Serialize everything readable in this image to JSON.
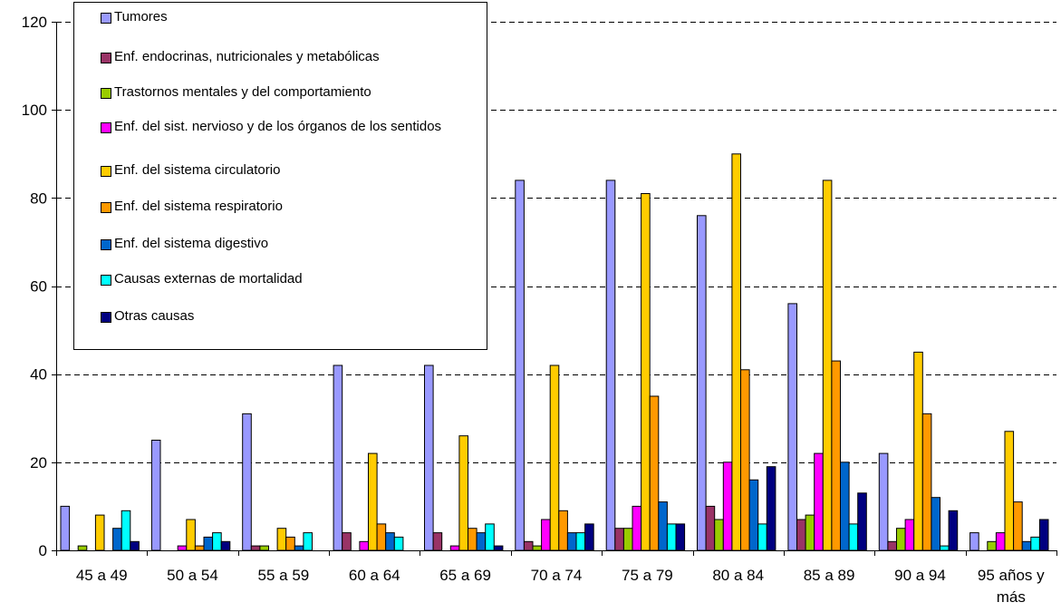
{
  "chart_data": {
    "type": "bar",
    "categories": [
      "45 a 49",
      "50 a 54",
      "55 a 59",
      "60 a 64",
      "65 a 69",
      "70 a 74",
      "75 a 79",
      "80 a 84",
      "85 a 89",
      "90 a 94",
      "95 años y más"
    ],
    "ylim": [
      0,
      120
    ],
    "yticks": [
      0,
      20,
      40,
      60,
      80,
      100,
      120
    ],
    "grid": "horizontal dashed",
    "legend_position": "top-left",
    "series": [
      {
        "name": "Tumores",
        "color": "#9999FF",
        "values": [
          10,
          25,
          31,
          42,
          42,
          84,
          84,
          76,
          56,
          22,
          4
        ]
      },
      {
        "name": "Enf. endocrinas, nutricionales y metabólicas",
        "color": "#993366",
        "values": [
          0,
          0,
          1,
          4,
          4,
          2,
          5,
          10,
          7,
          2,
          0
        ]
      },
      {
        "name": "Trastornos mentales y del comportamiento",
        "color": "#99CC00",
        "values": [
          1,
          0,
          1,
          0,
          0,
          1,
          5,
          7,
          8,
          5,
          2
        ]
      },
      {
        "name": "Enf. del sist. nervioso y de los órganos de los sentidos",
        "color": "#FF00FF",
        "values": [
          0,
          1,
          0,
          2,
          1,
          7,
          10,
          20,
          22,
          7,
          4
        ]
      },
      {
        "name": "Enf. del sistema circulatorio",
        "color": "#FFCC00",
        "values": [
          8,
          7,
          5,
          22,
          26,
          42,
          81,
          90,
          84,
          45,
          27
        ]
      },
      {
        "name": "Enf. del sistema respiratorio",
        "color": "#FF9900",
        "values": [
          0,
          1,
          3,
          6,
          5,
          9,
          35,
          41,
          43,
          31,
          11
        ]
      },
      {
        "name": "Enf. del sistema digestivo",
        "color": "#0066CC",
        "values": [
          5,
          3,
          1,
          4,
          4,
          4,
          11,
          16,
          20,
          12,
          2
        ]
      },
      {
        "name": "Causas externas de mortalidad",
        "color": "#00FFFF",
        "values": [
          9,
          4,
          4,
          3,
          6,
          4,
          6,
          6,
          6,
          1,
          3
        ]
      },
      {
        "name": "Otras causas",
        "color": "#000080",
        "values": [
          2,
          2,
          0,
          0,
          1,
          6,
          6,
          19,
          13,
          9,
          7
        ]
      }
    ]
  }
}
